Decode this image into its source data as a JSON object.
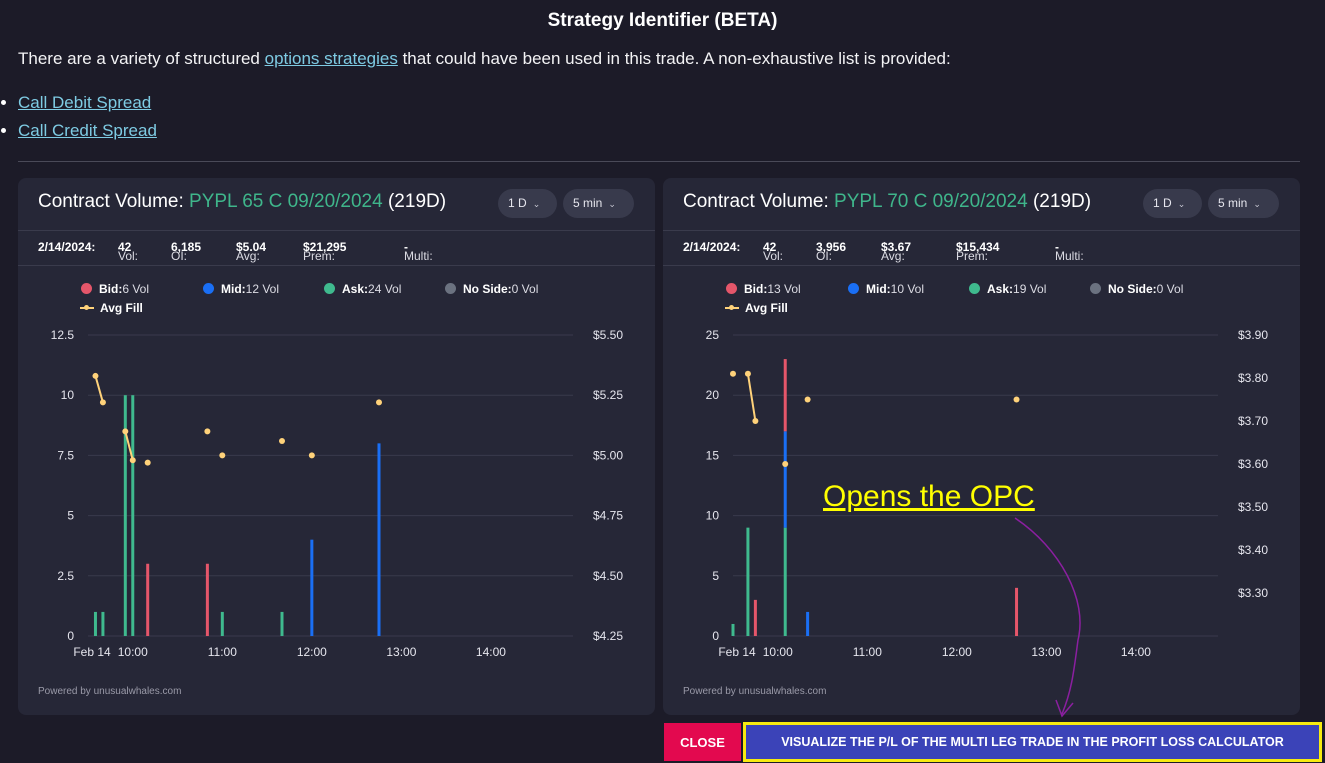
{
  "title": "Strategy Identifier (BETA)",
  "intro": {
    "before": "There are a variety of structured ",
    "link": "options strategies",
    "after": " that could have been used in this trade. A non-exhaustive list is provided:"
  },
  "strategies": [
    "Call Debit Spread",
    "Call Credit Spread"
  ],
  "panels": [
    {
      "title_prefix": "Contract Volume: ",
      "contract": "PYPL 65 C 09/20/2024",
      "days": "(219D)",
      "range_select": "1 D",
      "interval_select": "5 min",
      "stats": {
        "date": "2/14/2024:",
        "vol_label": "Vol:",
        "vol": "42",
        "oi_label": "OI:",
        "oi": "6,185",
        "avg_label": "Avg:",
        "avg": "$5.04",
        "prem_label": "Prem:",
        "prem": "$21,295",
        "multi_label": "Multi:",
        "multi": "-"
      },
      "legend": {
        "bid_label": "Bid:",
        "bid": "6 Vol",
        "mid_label": "Mid:",
        "mid": "12 Vol",
        "ask_label": "Ask:",
        "ask": "24 Vol",
        "noside_label": "No Side:",
        "noside": "0 Vol",
        "avg_fill": "Avg Fill"
      },
      "powered": "Powered by unusualwhales.com"
    },
    {
      "title_prefix": "Contract Volume: ",
      "contract": "PYPL 70 C 09/20/2024",
      "days": "(219D)",
      "range_select": "1 D",
      "interval_select": "5 min",
      "stats": {
        "date": "2/14/2024:",
        "vol_label": "Vol:",
        "vol": "42",
        "oi_label": "OI:",
        "oi": "3,956",
        "avg_label": "Avg:",
        "avg": "$3.67",
        "prem_label": "Prem:",
        "prem": "$15,434",
        "multi_label": "Multi:",
        "multi": "-"
      },
      "legend": {
        "bid_label": "Bid:",
        "bid": "13 Vol",
        "mid_label": "Mid:",
        "mid": "10 Vol",
        "ask_label": "Ask:",
        "ask": "19 Vol",
        "noside_label": "No Side:",
        "noside": "0 Vol",
        "avg_fill": "Avg Fill"
      },
      "powered": "Powered by unusualwhales.com"
    }
  ],
  "colors": {
    "bid": "#e5566a",
    "mid": "#1a6ff5",
    "ask": "#3fba8e",
    "noside": "#6b7280",
    "avg_fill": "#ffd27a",
    "green_text": "#3fb68b",
    "close_button": "#e3094f",
    "visualize_button": "#3b43b8",
    "highlight": "#f7ea10"
  },
  "chart_data": [
    {
      "type": "bar",
      "x_ticks": [
        "Feb 14",
        "10:00",
        "11:00",
        "12:00",
        "13:00",
        "14:00"
      ],
      "ylim": [
        0,
        12.5
      ],
      "y_ticks": [
        "0",
        "2.5",
        "5",
        "7.5",
        "10",
        "12.5"
      ],
      "y2lim": [
        4.25,
        5.5
      ],
      "y2_ticks": [
        "$4.25",
        "$4.50",
        "$4.75",
        "$5.00",
        "$5.25",
        "$5.50"
      ],
      "x_range": [
        "09:30",
        "14:55"
      ],
      "bars": [
        {
          "time": "09:35",
          "side": "ask",
          "value": 1
        },
        {
          "time": "09:40",
          "side": "ask",
          "value": 1
        },
        {
          "time": "09:55",
          "side": "ask",
          "value": 10
        },
        {
          "time": "10:00",
          "side": "ask",
          "value": 10
        },
        {
          "time": "10:10",
          "side": "bid",
          "value": 3
        },
        {
          "time": "10:50",
          "side": "bid",
          "value": 3
        },
        {
          "time": "11:00",
          "side": "ask",
          "value": 1
        },
        {
          "time": "11:40",
          "side": "ask",
          "value": 1
        },
        {
          "time": "12:00",
          "side": "mid",
          "value": 4
        },
        {
          "time": "12:45",
          "side": "mid",
          "value": 8
        }
      ],
      "avg_fill": [
        {
          "time": "09:35",
          "price": 5.33
        },
        {
          "time": "09:40",
          "price": 5.22
        },
        {
          "time": "09:55",
          "price": 5.1
        },
        {
          "time": "10:00",
          "price": 4.98
        },
        {
          "time": "10:10",
          "price": 4.97
        },
        {
          "time": "10:50",
          "price": 5.1
        },
        {
          "time": "11:00",
          "price": 5.0
        },
        {
          "time": "11:40",
          "price": 5.06
        },
        {
          "time": "12:00",
          "price": 5.0
        },
        {
          "time": "12:45",
          "price": 5.22
        }
      ],
      "avg_fill_connected": [
        [
          0,
          1
        ],
        [
          2,
          3
        ]
      ]
    },
    {
      "type": "bar",
      "x_ticks": [
        "Feb 14",
        "10:00",
        "11:00",
        "12:00",
        "13:00",
        "14:00"
      ],
      "ylim": [
        0,
        25
      ],
      "y_ticks": [
        "0",
        "5",
        "10",
        "15",
        "20",
        "25"
      ],
      "y2lim": [
        3.2,
        3.9
      ],
      "y2_ticks": [
        "$3.30",
        "$3.40",
        "$3.50",
        "$3.60",
        "$3.70",
        "$3.80",
        "$3.90"
      ],
      "x_range": [
        "09:30",
        "14:55"
      ],
      "bars": [
        {
          "time": "09:30",
          "side": "ask",
          "value": 1
        },
        {
          "time": "09:40",
          "side": "ask",
          "value": 9
        },
        {
          "time": "09:45",
          "side": "bid",
          "value": 3
        },
        {
          "time": "10:05",
          "side": "ask",
          "value": 9,
          "stack": [
            {
              "side": "ask",
              "value": 9
            },
            {
              "side": "mid",
              "value": 8
            },
            {
              "side": "bid",
              "value": 6
            }
          ]
        },
        {
          "time": "10:20",
          "side": "mid",
          "value": 2
        },
        {
          "time": "12:40",
          "side": "bid",
          "value": 4
        }
      ],
      "avg_fill": [
        {
          "time": "09:30",
          "price": 3.81
        },
        {
          "time": "09:40",
          "price": 3.81
        },
        {
          "time": "09:45",
          "price": 3.7
        },
        {
          "time": "10:05",
          "price": 3.6
        },
        {
          "time": "10:20",
          "price": 3.75
        },
        {
          "time": "12:40",
          "price": 3.75
        }
      ],
      "avg_fill_connected": [
        [
          1,
          2
        ]
      ]
    }
  ],
  "annotation": "Opens the OPC",
  "buttons": {
    "close": "CLOSE",
    "visualize": "VISUALIZE THE P/L OF THE MULTI LEG TRADE IN THE PROFIT LOSS CALCULATOR"
  }
}
